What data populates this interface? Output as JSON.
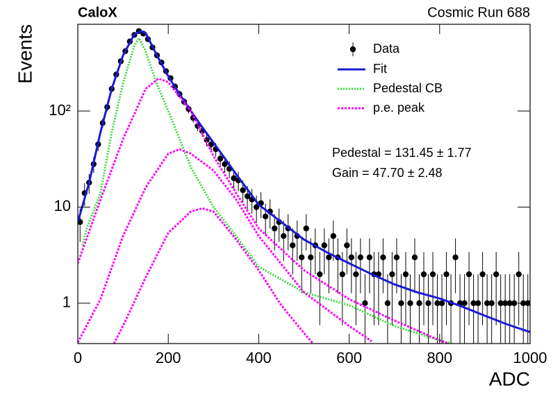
{
  "chart_data": {
    "type": "histogram",
    "title": "CaloX",
    "subtitle": "Cosmic Run 688",
    "x_label": "ADC",
    "y_label": "Events",
    "xlim": [
      0,
      1000
    ],
    "xticks": [
      0,
      200,
      400,
      600,
      800,
      1000
    ],
    "ylim": [
      0.38,
      800
    ],
    "yticks": [
      1,
      10,
      {
        "value": 100,
        "label": "10²"
      }
    ],
    "log_y": true,
    "legend": "upper right",
    "annotations": [
      "Pedestal = 131.45 ± 1.77",
      "Gain = 47.70 ± 2.48"
    ],
    "series": [
      {
        "name": "Data",
        "color": "#000000",
        "x": [
          5,
          15,
          25,
          35,
          45,
          55,
          65,
          75,
          85,
          95,
          105,
          115,
          125,
          135,
          145,
          155,
          165,
          175,
          185,
          195,
          205,
          215,
          225,
          235,
          245,
          255,
          265,
          275,
          285,
          295,
          305,
          315,
          325,
          335,
          345,
          355,
          365,
          375,
          385,
          395,
          405,
          415,
          425,
          435,
          445,
          455,
          465,
          475,
          485,
          495,
          505,
          515,
          525,
          535,
          545,
          555,
          565,
          575,
          585,
          595,
          605,
          615,
          625,
          635,
          645,
          655,
          665,
          675,
          685,
          695,
          705,
          715,
          725,
          735,
          745,
          755,
          765,
          775,
          785,
          795,
          805,
          815,
          825,
          835,
          845,
          855,
          865,
          875,
          885,
          895,
          905,
          915,
          925,
          935,
          945,
          955,
          965,
          975,
          985,
          995
        ],
        "values": [
          7,
          14,
          18,
          28,
          45,
          75,
          110,
          170,
          240,
          330,
          420,
          530,
          620,
          680,
          640,
          560,
          460,
          380,
          320,
          260,
          220,
          180,
          150,
          125,
          105,
          85,
          70,
          62,
          50,
          45,
          40,
          32,
          28,
          25,
          20,
          19,
          15,
          13,
          12,
          10,
          11,
          8,
          9,
          6,
          7,
          5,
          6,
          4,
          5,
          3,
          6,
          3,
          4,
          2,
          4,
          3,
          5,
          3,
          2,
          4,
          3,
          2,
          3,
          1,
          3,
          2,
          2,
          3,
          1,
          2,
          3,
          1,
          2,
          1,
          3,
          1,
          2,
          1,
          2,
          1,
          1,
          2,
          1,
          3,
          1,
          1,
          2,
          1,
          1,
          2,
          1,
          1,
          2,
          1,
          1,
          1,
          1,
          2,
          1,
          1
        ],
        "errors": [
          2.65,
          3.74,
          4.24,
          5.29,
          6.71,
          8.66,
          10.49,
          13.04,
          15.49,
          18.17,
          20.49,
          23.02,
          24.9,
          26.08,
          25.3,
          23.66,
          21.45,
          19.49,
          17.89,
          16.12,
          14.83,
          13.42,
          12.25,
          11.18,
          10.25,
          9.22,
          8.37,
          7.87,
          7.07,
          6.71,
          6.32,
          5.66,
          5.29,
          5,
          4.47,
          4.36,
          3.87,
          3.61,
          3.46,
          3.16,
          3.32,
          2.83,
          3,
          2.45,
          2.65,
          2.24,
          2.45,
          2,
          2.24,
          1.73,
          2.45,
          1.73,
          2,
          1.41,
          2,
          1.73,
          2.24,
          1.73,
          1.41,
          2,
          1.73,
          1.41,
          1.73,
          1,
          1.73,
          1.41,
          1.41,
          1.73,
          1,
          1.41,
          1.73,
          1,
          1.41,
          1,
          1.73,
          1,
          1.41,
          1,
          1.41,
          1,
          1,
          1.41,
          1,
          1.73,
          1,
          1,
          1.41,
          1,
          1,
          1.41,
          1,
          1,
          1.41,
          1,
          1,
          1,
          1,
          1.41,
          1,
          1
        ]
      },
      {
        "name": "Fit",
        "color": "#1a1ad6",
        "x": [
          0,
          25,
          50,
          75,
          100,
          125,
          140,
          150,
          175,
          200,
          225,
          250,
          275,
          300,
          350,
          400,
          450,
          500,
          550,
          600,
          650,
          700,
          750,
          800,
          850,
          900,
          950,
          1000
        ],
        "values": [
          7,
          18,
          60,
          170,
          380,
          630,
          680,
          650,
          380,
          230,
          150,
          100,
          68,
          47,
          22,
          10.6,
          7,
          4.6,
          3.4,
          2.6,
          2,
          1.57,
          1.3,
          1.12,
          0.92,
          0.74,
          0.6,
          0.5
        ]
      },
      {
        "name": "Pedestal CB",
        "color": "#33dd33",
        "x": [
          10,
          20,
          50,
          75,
          100,
          125,
          135,
          150,
          175,
          200,
          250,
          300,
          350,
          400,
          500,
          600,
          700,
          800,
          830
        ],
        "values": [
          4,
          6,
          14,
          60,
          195,
          480,
          575,
          420,
          190,
          100,
          26,
          10,
          5,
          2.4,
          1.3,
          0.95,
          0.58,
          0.41,
          0.38
        ]
      },
      {
        "name": "p.e. peak",
        "color": "#ff00ff",
        "curves": [
          {
            "x": [
              0,
              50,
              100,
              150,
              178,
              200,
              250,
              300,
              350,
              400,
              500,
              600,
              700,
              800,
              820
            ],
            "values": [
              2.6,
              12,
              51,
              170,
              218,
              200,
              100,
              34,
              14,
              6,
              2.2,
              1.1,
              0.66,
              0.41,
              0.38
            ]
          },
          {
            "x": [
              0,
              50,
              100,
              150,
              200,
              225,
              250,
              300,
              350,
              400,
              500,
              600,
              650
            ],
            "values": [
              0.39,
              1.1,
              5,
              16,
              36,
              40,
              36,
              24,
              12,
              5,
              1.3,
              0.58,
              0.4
            ]
          },
          {
            "x": [
              80,
              100,
              150,
              200,
              250,
              275,
              300,
              350,
              400,
              450,
              500,
              520
            ],
            "values": [
              0.38,
              0.58,
              1.85,
              5.4,
              9,
              9.7,
              9,
              4.6,
              2.2,
              0.95,
              0.49,
              0.38
            ]
          }
        ]
      }
    ]
  }
}
